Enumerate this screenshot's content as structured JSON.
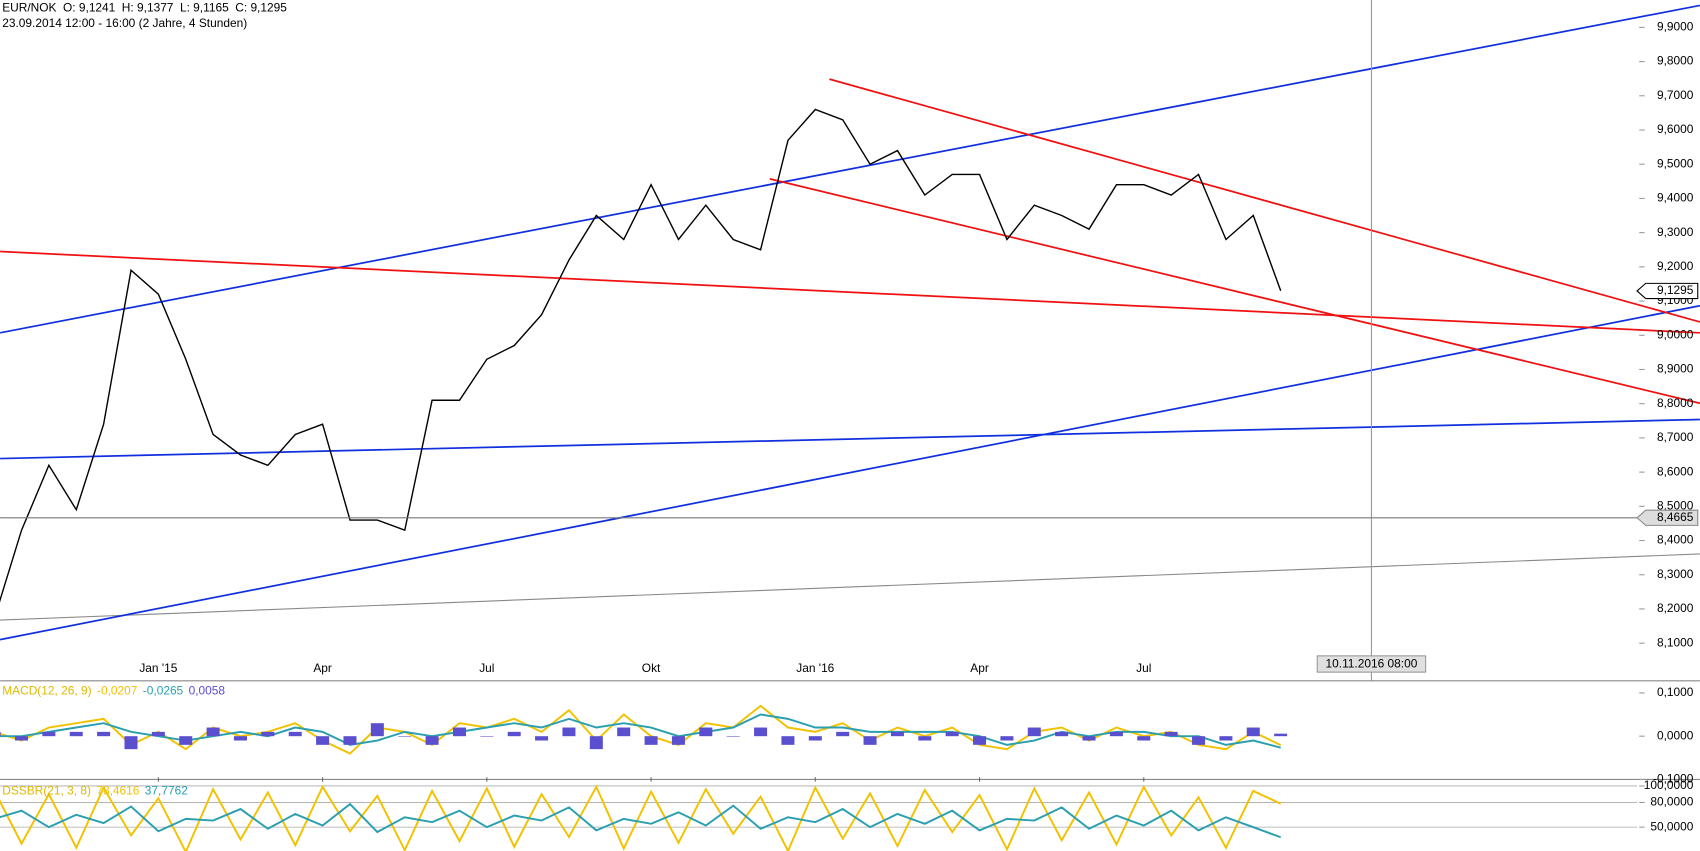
{
  "chart_data": [
    {
      "type": "line",
      "title": "EUR/NOK",
      "ohlc": [
        "O: 9,1241",
        "H: 9,1377",
        "L: 9,1165",
        "C: 9,1295"
      ],
      "subtitle": "23.09.2014 12:00 - 16:00 (2 Jahre, 4 Stunden)",
      "categories": [
        null,
        null,
        null,
        null,
        null,
        null,
        "Jan '15",
        null,
        null,
        null,
        null,
        null,
        "Apr",
        null,
        null,
        null,
        null,
        null,
        "Jul",
        null,
        null,
        null,
        null,
        null,
        "Okt",
        null,
        null,
        null,
        null,
        null,
        "Jan '16",
        null,
        null,
        null,
        null,
        null,
        "Apr",
        null,
        null,
        null,
        null,
        null,
        "Jul",
        null,
        null,
        null,
        null,
        null,
        null,
        null,
        null,
        null,
        null,
        null,
        null,
        null,
        null,
        null,
        null,
        null,
        null
      ],
      "series": [
        {
          "color": "#000000",
          "values": [
            8.17,
            8.43,
            8.62,
            8.49,
            8.74,
            9.19,
            9.12,
            8.93,
            8.71,
            8.65,
            8.62,
            8.71,
            8.74,
            8.46,
            8.46,
            8.43,
            8.81,
            8.81,
            8.93,
            8.97,
            9.06,
            9.22,
            9.35,
            9.28,
            9.44,
            9.28,
            9.38,
            9.28,
            9.25,
            9.57,
            9.66,
            9.63,
            9.5,
            9.54,
            9.41,
            9.47,
            9.47,
            9.28,
            9.38,
            9.35,
            9.31,
            9.44,
            9.44,
            9.41,
            9.47,
            9.28,
            9.35,
            9.13,
            null,
            null,
            null,
            null,
            null,
            null,
            null,
            null,
            null,
            null,
            null,
            null,
            null
          ]
        }
      ],
      "ylim": [
        7.99,
        9.98
      ],
      "yticks": [
        {
          "value": 8.1,
          "label": "8,1000"
        },
        {
          "value": 8.2,
          "label": "8,2000"
        },
        {
          "value": 8.3,
          "label": "8,3000"
        },
        {
          "value": 8.4,
          "label": "8,4000"
        },
        {
          "value": 8.5,
          "label": "8,5000"
        },
        {
          "value": 8.6,
          "label": "8,6000"
        },
        {
          "value": 8.7,
          "label": "8,7000"
        },
        {
          "value": 8.8,
          "label": "8,8000"
        },
        {
          "value": 8.9,
          "label": "8,9000"
        },
        {
          "value": 9.0,
          "label": "9,0000"
        },
        {
          "value": 9.1,
          "label": "9,1000"
        },
        {
          "value": 9.2,
          "label": "9,2000"
        },
        {
          "value": 9.3,
          "label": "9,3000"
        },
        {
          "value": 9.4,
          "label": "9,4000"
        },
        {
          "value": 9.5,
          "label": "9,5000"
        },
        {
          "value": 9.6,
          "label": "9,6000"
        },
        {
          "value": 9.7,
          "label": "9,7000"
        },
        {
          "value": 9.8,
          "label": "9,8000"
        },
        {
          "value": 9.9,
          "label": "9,9000"
        }
      ],
      "last_price": {
        "value": 9.1295,
        "label": "9,1295"
      },
      "level": {
        "value": 8.4665,
        "label": "8,4665"
      },
      "cursor_label": "10.11.2016 08:00"
    },
    {
      "type": "line",
      "title": "MACD(12, 26, 9)",
      "title_color": "#e0b800",
      "series": [
        {
          "style": "line",
          "color": "#f2c200",
          "last_label": "-0,0207",
          "values": [
            0.01,
            -0.01,
            0.02,
            0.03,
            0.04,
            -0.02,
            0.01,
            -0.03,
            0.02,
            0.0,
            0.01,
            0.03,
            -0.01,
            -0.04,
            0.02,
            0.01,
            -0.02,
            0.03,
            0.02,
            0.04,
            0.01,
            0.06,
            -0.01,
            0.05,
            0.0,
            -0.02,
            0.03,
            0.02,
            0.07,
            0.02,
            0.01,
            0.03,
            -0.01,
            0.02,
            0.0,
            0.02,
            -0.02,
            -0.03,
            0.01,
            0.02,
            -0.01,
            0.02,
            0.0,
            0.01,
            -0.02,
            -0.03,
            0.01,
            -0.0207
          ]
        },
        {
          "style": "line",
          "color": "#2a9fb0",
          "last_label": "-0,0265",
          "values": [
            0.0,
            0.0,
            0.01,
            0.02,
            0.03,
            0.01,
            0.0,
            -0.01,
            0.0,
            0.01,
            0.0,
            0.02,
            0.01,
            -0.02,
            -0.01,
            0.01,
            0.0,
            0.01,
            0.02,
            0.03,
            0.02,
            0.04,
            0.02,
            0.03,
            0.02,
            0.0,
            0.01,
            0.02,
            0.05,
            0.04,
            0.02,
            0.02,
            0.01,
            0.01,
            0.01,
            0.01,
            0.0,
            -0.02,
            -0.01,
            0.01,
            0.0,
            0.01,
            0.01,
            0.0,
            0.0,
            -0.02,
            -0.01,
            -0.0265
          ]
        },
        {
          "style": "bar",
          "color": "#5a4fcf",
          "last_label": "0,0058",
          "values": [
            0.01,
            -0.01,
            0.01,
            0.01,
            0.01,
            -0.03,
            0.01,
            -0.02,
            0.02,
            -0.01,
            0.01,
            0.01,
            -0.02,
            -0.02,
            0.03,
            0.0,
            -0.02,
            0.02,
            0.0,
            0.01,
            -0.01,
            0.02,
            -0.03,
            0.02,
            -0.02,
            -0.02,
            0.02,
            0.0,
            0.02,
            -0.02,
            -0.01,
            0.01,
            -0.02,
            0.01,
            -0.01,
            0.01,
            -0.02,
            -0.01,
            0.02,
            0.01,
            -0.01,
            0.01,
            -0.01,
            0.01,
            -0.02,
            -0.01,
            0.02,
            0.0058
          ]
        }
      ],
      "ylim": [
        -0.1,
        0.128
      ],
      "yticks": [
        {
          "value": -0.1,
          "label": "-0,1000"
        },
        {
          "value": 0,
          "label": "0,0000"
        },
        {
          "value": 0.1,
          "label": "0,1000"
        }
      ]
    },
    {
      "type": "line",
      "title": "DSSBR(21, 3, 8)",
      "title_color": "#e0b800",
      "series": [
        {
          "style": "line",
          "color": "#f2c200",
          "last_label": "78,4616",
          "values": [
            95,
            30,
            90,
            25,
            98,
            40,
            85,
            20,
            96,
            35,
            92,
            28,
            99,
            45,
            88,
            22,
            94,
            33,
            97,
            26,
            90,
            38,
            99,
            24,
            93,
            31,
            96,
            42,
            87,
            21,
            98,
            36,
            91,
            27,
            95,
            44,
            89,
            23,
            97,
            34,
            92,
            29,
            99,
            40,
            86,
            25,
            94,
            78.4616
          ]
        },
        {
          "style": "line",
          "color": "#2a9fb0",
          "last_label": "37,7762",
          "values": [
            60,
            70,
            50,
            65,
            55,
            75,
            45,
            60,
            58,
            72,
            48,
            66,
            52,
            78,
            44,
            62,
            56,
            70,
            50,
            64,
            58,
            74,
            46,
            60,
            54,
            68,
            52,
            76,
            48,
            62,
            56,
            72,
            50,
            66,
            54,
            70,
            46,
            60,
            58,
            74,
            48,
            64,
            52,
            70,
            46,
            62,
            50,
            37.7762
          ]
        }
      ],
      "ylim": [
        21,
        106.6
      ],
      "yticks": [
        {
          "value": 50,
          "label": "50,0000"
        },
        {
          "value": 80,
          "label": "80,0000"
        },
        {
          "value": 100,
          "label": "100,0000"
        }
      ]
    }
  ]
}
